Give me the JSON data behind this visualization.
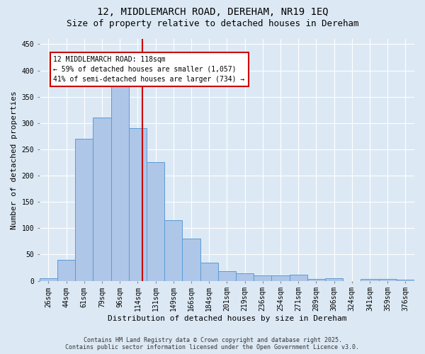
{
  "title_line1": "12, MIDDLEMARCH ROAD, DEREHAM, NR19 1EQ",
  "title_line2": "Size of property relative to detached houses in Dereham",
  "xlabel": "Distribution of detached houses by size in Dereham",
  "ylabel": "Number of detached properties",
  "categories": [
    "26sqm",
    "44sqm",
    "61sqm",
    "79sqm",
    "96sqm",
    "114sqm",
    "131sqm",
    "149sqm",
    "166sqm",
    "184sqm",
    "201sqm",
    "219sqm",
    "236sqm",
    "254sqm",
    "271sqm",
    "289sqm",
    "306sqm",
    "324sqm",
    "341sqm",
    "359sqm",
    "376sqm"
  ],
  "values": [
    5,
    40,
    270,
    310,
    370,
    290,
    225,
    115,
    80,
    35,
    18,
    14,
    10,
    10,
    12,
    3,
    5,
    0,
    4,
    3,
    2
  ],
  "bar_color": "#aec6e8",
  "bar_edge_color": "#5b9bd5",
  "bar_width": 1.0,
  "vline_color": "#cc0000",
  "vline_x": 5.27,
  "annotation_text": "12 MIDDLEMARCH ROAD: 118sqm\n← 59% of detached houses are smaller (1,057)\n41% of semi-detached houses are larger (734) →",
  "annotation_box_color": "#ffffff",
  "annotation_box_edge": "#cc0000",
  "ylim": [
    0,
    460
  ],
  "yticks": [
    0,
    50,
    100,
    150,
    200,
    250,
    300,
    350,
    400,
    450
  ],
  "background_color": "#dce9f5",
  "plot_background": "#dce9f5",
  "footer_line1": "Contains HM Land Registry data © Crown copyright and database right 2025.",
  "footer_line2": "Contains public sector information licensed under the Open Government Licence v3.0.",
  "grid_color": "#ffffff",
  "title_fontsize": 10,
  "subtitle_fontsize": 9,
  "axis_label_fontsize": 8,
  "tick_fontsize": 7,
  "annotation_fontsize": 7,
  "footer_fontsize": 6
}
